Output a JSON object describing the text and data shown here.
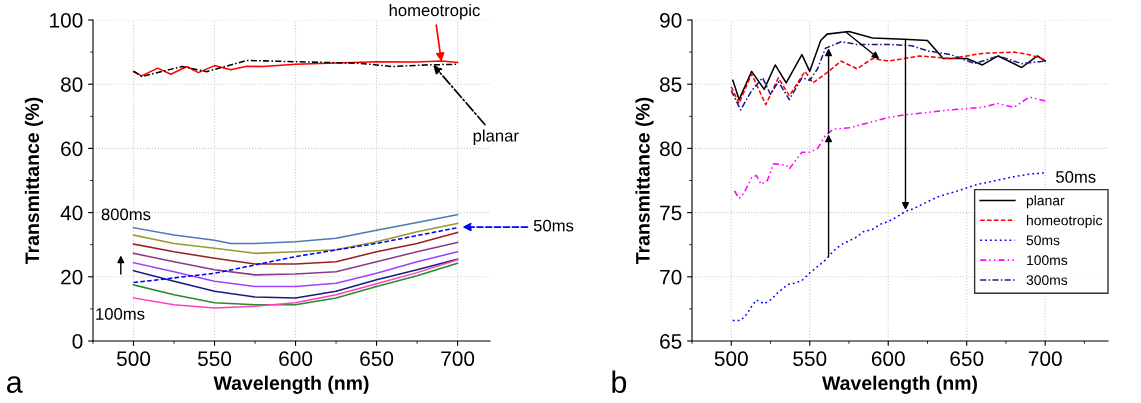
{
  "chart_data": [
    {
      "type": "line",
      "xlabel": "Wavelength (nm)",
      "ylabel": "Transmittance (%)",
      "xlim": [
        475,
        720
      ],
      "ylim": [
        0,
        100
      ],
      "xticks": [
        500,
        550,
        600,
        650,
        700
      ],
      "yticks": [
        0,
        20,
        40,
        60,
        80,
        100
      ],
      "grid": true,
      "legend": false,
      "annotations": [
        {
          "text": "homeotropic",
          "x": 690,
          "y": 87
        },
        {
          "text": "planar",
          "x": 685,
          "y": 86
        },
        "50ms",
        "800ms",
        "100ms",
        "a"
      ],
      "series": [
        {
          "color": "#ff0000",
          "line_style": "solid",
          "x": [
            500,
            505,
            515,
            523,
            533,
            540,
            550,
            560,
            570,
            580,
            600,
            625,
            650,
            675,
            690,
            700
          ],
          "values": [
            83.9,
            82.6,
            85.0,
            83.1,
            85.5,
            83.6,
            85.8,
            84.5,
            85.6,
            85.5,
            86.2,
            86.6,
            87.0,
            86.9,
            87.2,
            86.8
          ]
        },
        {
          "color": "#000000",
          "line_style": "dashdot",
          "x": [
            500,
            505,
            530,
            545,
            570,
            600,
            640,
            660,
            680,
            700
          ],
          "values": [
            84.1,
            82.4,
            85.5,
            83.9,
            87.4,
            87.0,
            86.5,
            85.5,
            86.0,
            86.2
          ]
        },
        {
          "color": "#4a7ab5",
          "line_style": "solid",
          "x": [
            500,
            525,
            550,
            560,
            575,
            600,
            625,
            650,
            675,
            700
          ],
          "values": [
            35.3,
            33.0,
            31.4,
            30.4,
            30.4,
            30.9,
            32.0,
            34.5,
            36.9,
            39.4
          ]
        },
        {
          "color": "#9a9a2a",
          "line_style": "solid",
          "x": [
            500,
            525,
            550,
            575,
            600,
            625,
            650,
            675,
            700
          ],
          "values": [
            33.0,
            30.4,
            28.9,
            27.3,
            27.8,
            28.4,
            30.9,
            34.0,
            36.6
          ]
        },
        {
          "color": "#9b2020",
          "line_style": "solid",
          "x": [
            500,
            525,
            550,
            575,
            600,
            625,
            650,
            675,
            700
          ],
          "values": [
            30.2,
            27.8,
            25.8,
            24.0,
            24.0,
            24.7,
            27.8,
            30.4,
            33.8
          ]
        },
        {
          "color": "#8b3a8b",
          "line_style": "solid",
          "x": [
            500,
            525,
            550,
            575,
            600,
            625,
            650,
            675,
            700
          ],
          "values": [
            27.3,
            24.7,
            22.2,
            20.6,
            20.9,
            21.6,
            24.7,
            27.8,
            30.7
          ]
        },
        {
          "color": "#a040ff",
          "line_style": "solid",
          "x": [
            500,
            525,
            550,
            575,
            600,
            625,
            650,
            675,
            700
          ],
          "values": [
            24.4,
            21.6,
            18.6,
            17.0,
            17.0,
            18.0,
            21.1,
            24.7,
            27.8
          ]
        },
        {
          "color": "#1a1a80",
          "line_style": "solid",
          "x": [
            500,
            525,
            550,
            575,
            600,
            625,
            650,
            675,
            700
          ],
          "values": [
            21.9,
            18.6,
            15.5,
            13.7,
            13.4,
            15.5,
            19.1,
            22.2,
            25.5
          ]
        },
        {
          "color": "#2a8a2a",
          "line_style": "solid",
          "x": [
            500,
            525,
            550,
            575,
            600,
            625,
            650,
            675,
            700
          ],
          "values": [
            17.5,
            14.4,
            11.9,
            11.3,
            11.3,
            13.4,
            17.0,
            20.3,
            24.2
          ]
        },
        {
          "color": "#ff40c0",
          "line_style": "solid",
          "x": [
            500,
            525,
            550,
            575,
            600,
            625,
            650,
            675,
            700
          ],
          "values": [
            13.4,
            11.3,
            10.3,
            10.8,
            11.9,
            14.4,
            17.8,
            21.3,
            25.3
          ]
        },
        {
          "color": "#0000ff",
          "line_style": "dashed",
          "x": [
            500,
            550,
            600,
            650,
            700
          ],
          "values": [
            18.2,
            21.1,
            26.3,
            30.4,
            35.3
          ]
        }
      ]
    },
    {
      "type": "line",
      "xlabel": "Wavelength (nm)",
      "ylabel": "Transmittance (%)",
      "xlim": [
        475,
        740
      ],
      "ylim": [
        65,
        90
      ],
      "xticks": [
        500,
        550,
        600,
        650,
        700
      ],
      "yticks": [
        65,
        70,
        75,
        80,
        85,
        90
      ],
      "grid": true,
      "legend": "right",
      "annotations": [
        {
          "text": "50ms",
          "x": 700,
          "y": 78.1
        },
        "b"
      ],
      "series": [
        {
          "name": "planar",
          "color": "#000000",
          "line_style": "solid",
          "x": [
            501,
            505,
            513,
            521,
            528,
            535,
            545,
            550,
            557,
            561,
            575,
            590,
            610,
            625,
            635,
            650,
            660,
            670,
            685,
            695,
            700
          ],
          "values": [
            85.3,
            83.8,
            86.0,
            84.6,
            86.5,
            85.1,
            87.3,
            86.0,
            88.4,
            88.9,
            89.1,
            88.6,
            88.5,
            88.4,
            87.0,
            87.0,
            86.5,
            87.2,
            86.3,
            87.2,
            86.8
          ]
        },
        {
          "name": "homeotropic",
          "color": "#ff0000",
          "line_style": "dashed",
          "x": [
            500,
            505,
            513,
            522,
            530,
            537,
            547,
            552,
            560,
            570,
            580,
            590,
            600,
            620,
            640,
            660,
            680,
            690,
            700
          ],
          "values": [
            84.8,
            83.5,
            85.8,
            83.4,
            85.5,
            84.1,
            86.0,
            85.1,
            85.8,
            86.8,
            86.2,
            87.0,
            86.8,
            87.2,
            87.0,
            87.4,
            87.5,
            87.3,
            86.9
          ]
        },
        {
          "name": "50ms",
          "color": "#0000ff",
          "line_style": "dotted",
          "x": [
            501,
            506,
            510,
            513,
            516,
            521,
            525,
            530,
            536,
            540,
            545,
            550,
            555,
            560,
            565,
            570,
            575,
            580,
            584,
            590,
            595,
            600,
            606,
            611,
            616,
            621,
            626,
            631,
            636,
            642,
            647,
            652,
            657,
            665,
            680,
            690,
            700
          ],
          "values": [
            66.6,
            66.6,
            67.1,
            67.7,
            68.2,
            67.9,
            68.2,
            68.8,
            69.4,
            69.5,
            69.7,
            70.3,
            70.8,
            71.3,
            72.0,
            72.5,
            72.8,
            73.1,
            73.5,
            73.7,
            74.1,
            74.3,
            74.7,
            75.1,
            75.3,
            75.6,
            75.9,
            76.2,
            76.4,
            76.6,
            76.8,
            77.0,
            77.2,
            77.4,
            77.8,
            78.0,
            78.1
          ]
        },
        {
          "name": "100ms",
          "color": "#ff00ff",
          "line_style": "dashdotdot",
          "x": [
            502,
            505,
            508,
            513,
            516,
            519,
            523,
            527,
            535,
            537,
            540,
            545,
            550,
            555,
            560,
            565,
            575,
            600,
            610,
            640,
            660,
            670,
            680,
            690,
            700
          ],
          "values": [
            76.7,
            76.1,
            76.5,
            77.7,
            77.9,
            77.2,
            77.5,
            78.8,
            78.7,
            78.4,
            78.9,
            79.7,
            79.7,
            80.0,
            81.0,
            81.5,
            81.6,
            82.4,
            82.6,
            83.0,
            83.2,
            83.5,
            83.2,
            84.0,
            83.7
          ]
        },
        {
          "name": "300ms",
          "color": "#1a1a8c",
          "line_style": "dashdot",
          "x": [
            500,
            506,
            513,
            520,
            525,
            530,
            537,
            545,
            550,
            555,
            560,
            570,
            580,
            600,
            615,
            625,
            640,
            655,
            670,
            685,
            700
          ],
          "values": [
            84.5,
            83.0,
            84.5,
            85.5,
            84.2,
            85.2,
            83.8,
            85.5,
            85.3,
            86.2,
            87.8,
            88.3,
            88.1,
            88.1,
            88.0,
            87.6,
            87.3,
            86.6,
            87.2,
            86.6,
            86.8
          ]
        }
      ]
    }
  ]
}
